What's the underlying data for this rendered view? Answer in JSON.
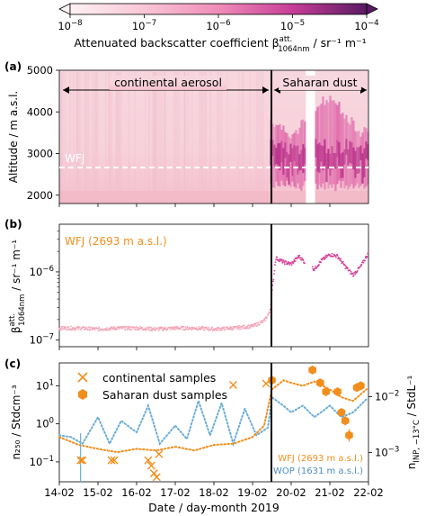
{
  "colorbar": {
    "ticks": [
      "10",
      "10",
      "10",
      "10",
      "10"
    ],
    "exps": [
      "−8",
      "−7",
      "−6",
      "−5",
      "−4"
    ],
    "label_pre": "Attenuated backscatter coefficient β",
    "label_sup": "att.",
    "label_sub": "1064nm",
    "label_post": " / sr⁻¹ m⁻¹"
  },
  "panels": {
    "a": {
      "letter": "(a)",
      "ylabel": "Altitude / m a.s.l.",
      "yticks": [
        "2000",
        "3000",
        "4000",
        "5000"
      ],
      "region_left": "continental aerosol",
      "region_right": "Saharan dust",
      "station": "WFJ"
    },
    "b": {
      "letter": "(b)",
      "ylabel_pre": "β",
      "ylabel_sup": "att.",
      "ylabel_sub": "1064nm",
      "ylabel_post": " / sr⁻¹ m⁻¹",
      "tick_base": "10",
      "tick_exps": [
        "−7",
        "−6"
      ],
      "label": "WFJ (2693 m a.s.l.)"
    },
    "c": {
      "letter": "(c)",
      "ylabel_left": "n₂₅₀ / Stdcm⁻³",
      "ylabel_right_pre": "n",
      "ylabel_right_sub": "INP, −13°C",
      "ylabel_right_post": " / StdL⁻¹",
      "left_tick_texts": [
        "10",
        "10",
        "10"
      ],
      "left_tick_exps": [
        "−1",
        "0",
        "1"
      ],
      "right_tick_texts": [
        "10",
        "10"
      ],
      "right_tick_exps": [
        "−3",
        "−2"
      ],
      "legend": [
        "continental samples",
        "Saharan dust samples"
      ],
      "wfj_label": "WFJ (2693 m a.s.l.)",
      "wop_label": "WOP (1631 m a.s.l.)"
    }
  },
  "xaxis": {
    "label": "Date / day-month 2019",
    "ticks": [
      "14-02",
      "15-02",
      "16-02",
      "17-02",
      "18-02",
      "19-02",
      "20-02",
      "21-02",
      "22-02"
    ]
  },
  "colors": {
    "continental": "#f4a7b9",
    "saharan": "#d6449a",
    "orange": "#f28e1c",
    "blue": "#6baed6"
  },
  "chart_data": [
    {
      "type": "heatmap",
      "title": "",
      "xlabel": "",
      "ylabel": "Altitude / m a.s.l.",
      "ylim": [
        1800,
        5000
      ],
      "xlim": [
        "14-02",
        "22-02"
      ],
      "colorbar_range": [
        1e-08,
        0.0001
      ],
      "log_scale": true,
      "annotations": [
        "continental aerosol",
        "Saharan dust",
        "WFJ"
      ],
      "station_altitude": 2693,
      "dust_onset_day": 19.45
    },
    {
      "type": "line",
      "title": "",
      "ylabel": "β att. 1064nm / sr⁻¹ m⁻¹",
      "log_scale": true,
      "ylim": [
        8e-08,
        5e-06
      ],
      "series": [
        {
          "name": "WFJ (2693 m a.s.l.)",
          "x": [
            14.0,
            14.5,
            15.0,
            15.5,
            16.0,
            16.5,
            17.0,
            17.5,
            18.0,
            18.5,
            19.0,
            19.3,
            19.45,
            19.6,
            19.8,
            20.0,
            20.2,
            20.4,
            20.6,
            20.8,
            21.0,
            21.2,
            21.4,
            21.6,
            21.8,
            22.0
          ],
          "y": [
            1.5e-07,
            1.5e-07,
            1.45e-07,
            1.5e-07,
            1.5e-07,
            1.45e-07,
            1.5e-07,
            1.5e-07,
            1.45e-07,
            1.5e-07,
            1.6e-07,
            1.9e-07,
            2.6e-07,
            1.6e-06,
            1.4e-06,
            1.3e-06,
            1.7e-06,
            1.3e-06,
            1.1e-06,
            1.5e-06,
            1.8e-06,
            1.7e-06,
            1.2e-06,
            9e-07,
            1.2e-06,
            1.9e-06
          ]
        }
      ]
    },
    {
      "type": "scatter",
      "title": "",
      "xlabel": "Date / day-month 2019",
      "ylabel": "n₂₅₀ / Stdcm⁻³",
      "ylabel_right": "n INP, −13°C / StdL⁻¹",
      "log_scale": true,
      "ylim": [
        0.03,
        40
      ],
      "ylim_right": [
        0.0003,
        0.04
      ],
      "series": [
        {
          "name": "continental samples",
          "x": [
            14.55,
            14.6,
            15.35,
            15.42,
            16.3,
            16.38,
            16.45,
            16.52,
            16.58,
            18.5,
            19.35
          ],
          "y": [
            0.11,
            0.11,
            0.11,
            0.11,
            0.11,
            0.08,
            0.05,
            0.04,
            0.16,
            10.5,
            11.5
          ]
        },
        {
          "name": "Saharan dust samples",
          "x": [
            19.5,
            20.55,
            20.75,
            20.9,
            21.2,
            21.3,
            21.4,
            21.5,
            21.7,
            21.8
          ],
          "y": [
            14.0,
            26.0,
            12.0,
            7.0,
            7.0,
            2.0,
            1.2,
            0.5,
            9.0,
            10.0
          ]
        },
        {
          "name": "WFJ (2693 m a.s.l.)",
          "x": [
            14.0,
            14.5,
            15.0,
            15.5,
            16.0,
            16.5,
            17.0,
            17.5,
            18.0,
            18.5,
            19.0,
            19.3,
            19.5,
            19.8,
            20.0,
            20.3,
            20.6,
            21.0,
            21.3,
            21.6,
            22.0
          ],
          "y": [
            0.45,
            0.28,
            0.22,
            0.18,
            0.22,
            0.2,
            0.25,
            0.2,
            0.28,
            0.3,
            0.45,
            0.9,
            8.0,
            14.0,
            12.0,
            10.0,
            13.0,
            8.0,
            5.0,
            4.0,
            9.0
          ]
        },
        {
          "name": "WOP (1631 m a.s.l.)",
          "x": [
            14.0,
            14.3,
            14.6,
            15.0,
            15.3,
            15.6,
            16.0,
            16.3,
            16.6,
            17.0,
            17.3,
            17.6,
            17.9,
            18.2,
            18.5,
            18.8,
            19.1,
            19.4,
            19.5,
            19.8,
            20.0,
            20.3,
            20.6,
            21.0,
            21.3,
            21.6,
            22.0
          ],
          "y": [
            0.5,
            0.45,
            0.3,
            1.5,
            0.3,
            1.2,
            0.6,
            3.0,
            0.3,
            0.9,
            0.4,
            4.0,
            0.5,
            3.5,
            0.3,
            2.5,
            0.5,
            0.8,
            5.0,
            3.0,
            2.0,
            3.0,
            1.5,
            3.0,
            1.5,
            2.0,
            5.0
          ]
        }
      ]
    }
  ]
}
